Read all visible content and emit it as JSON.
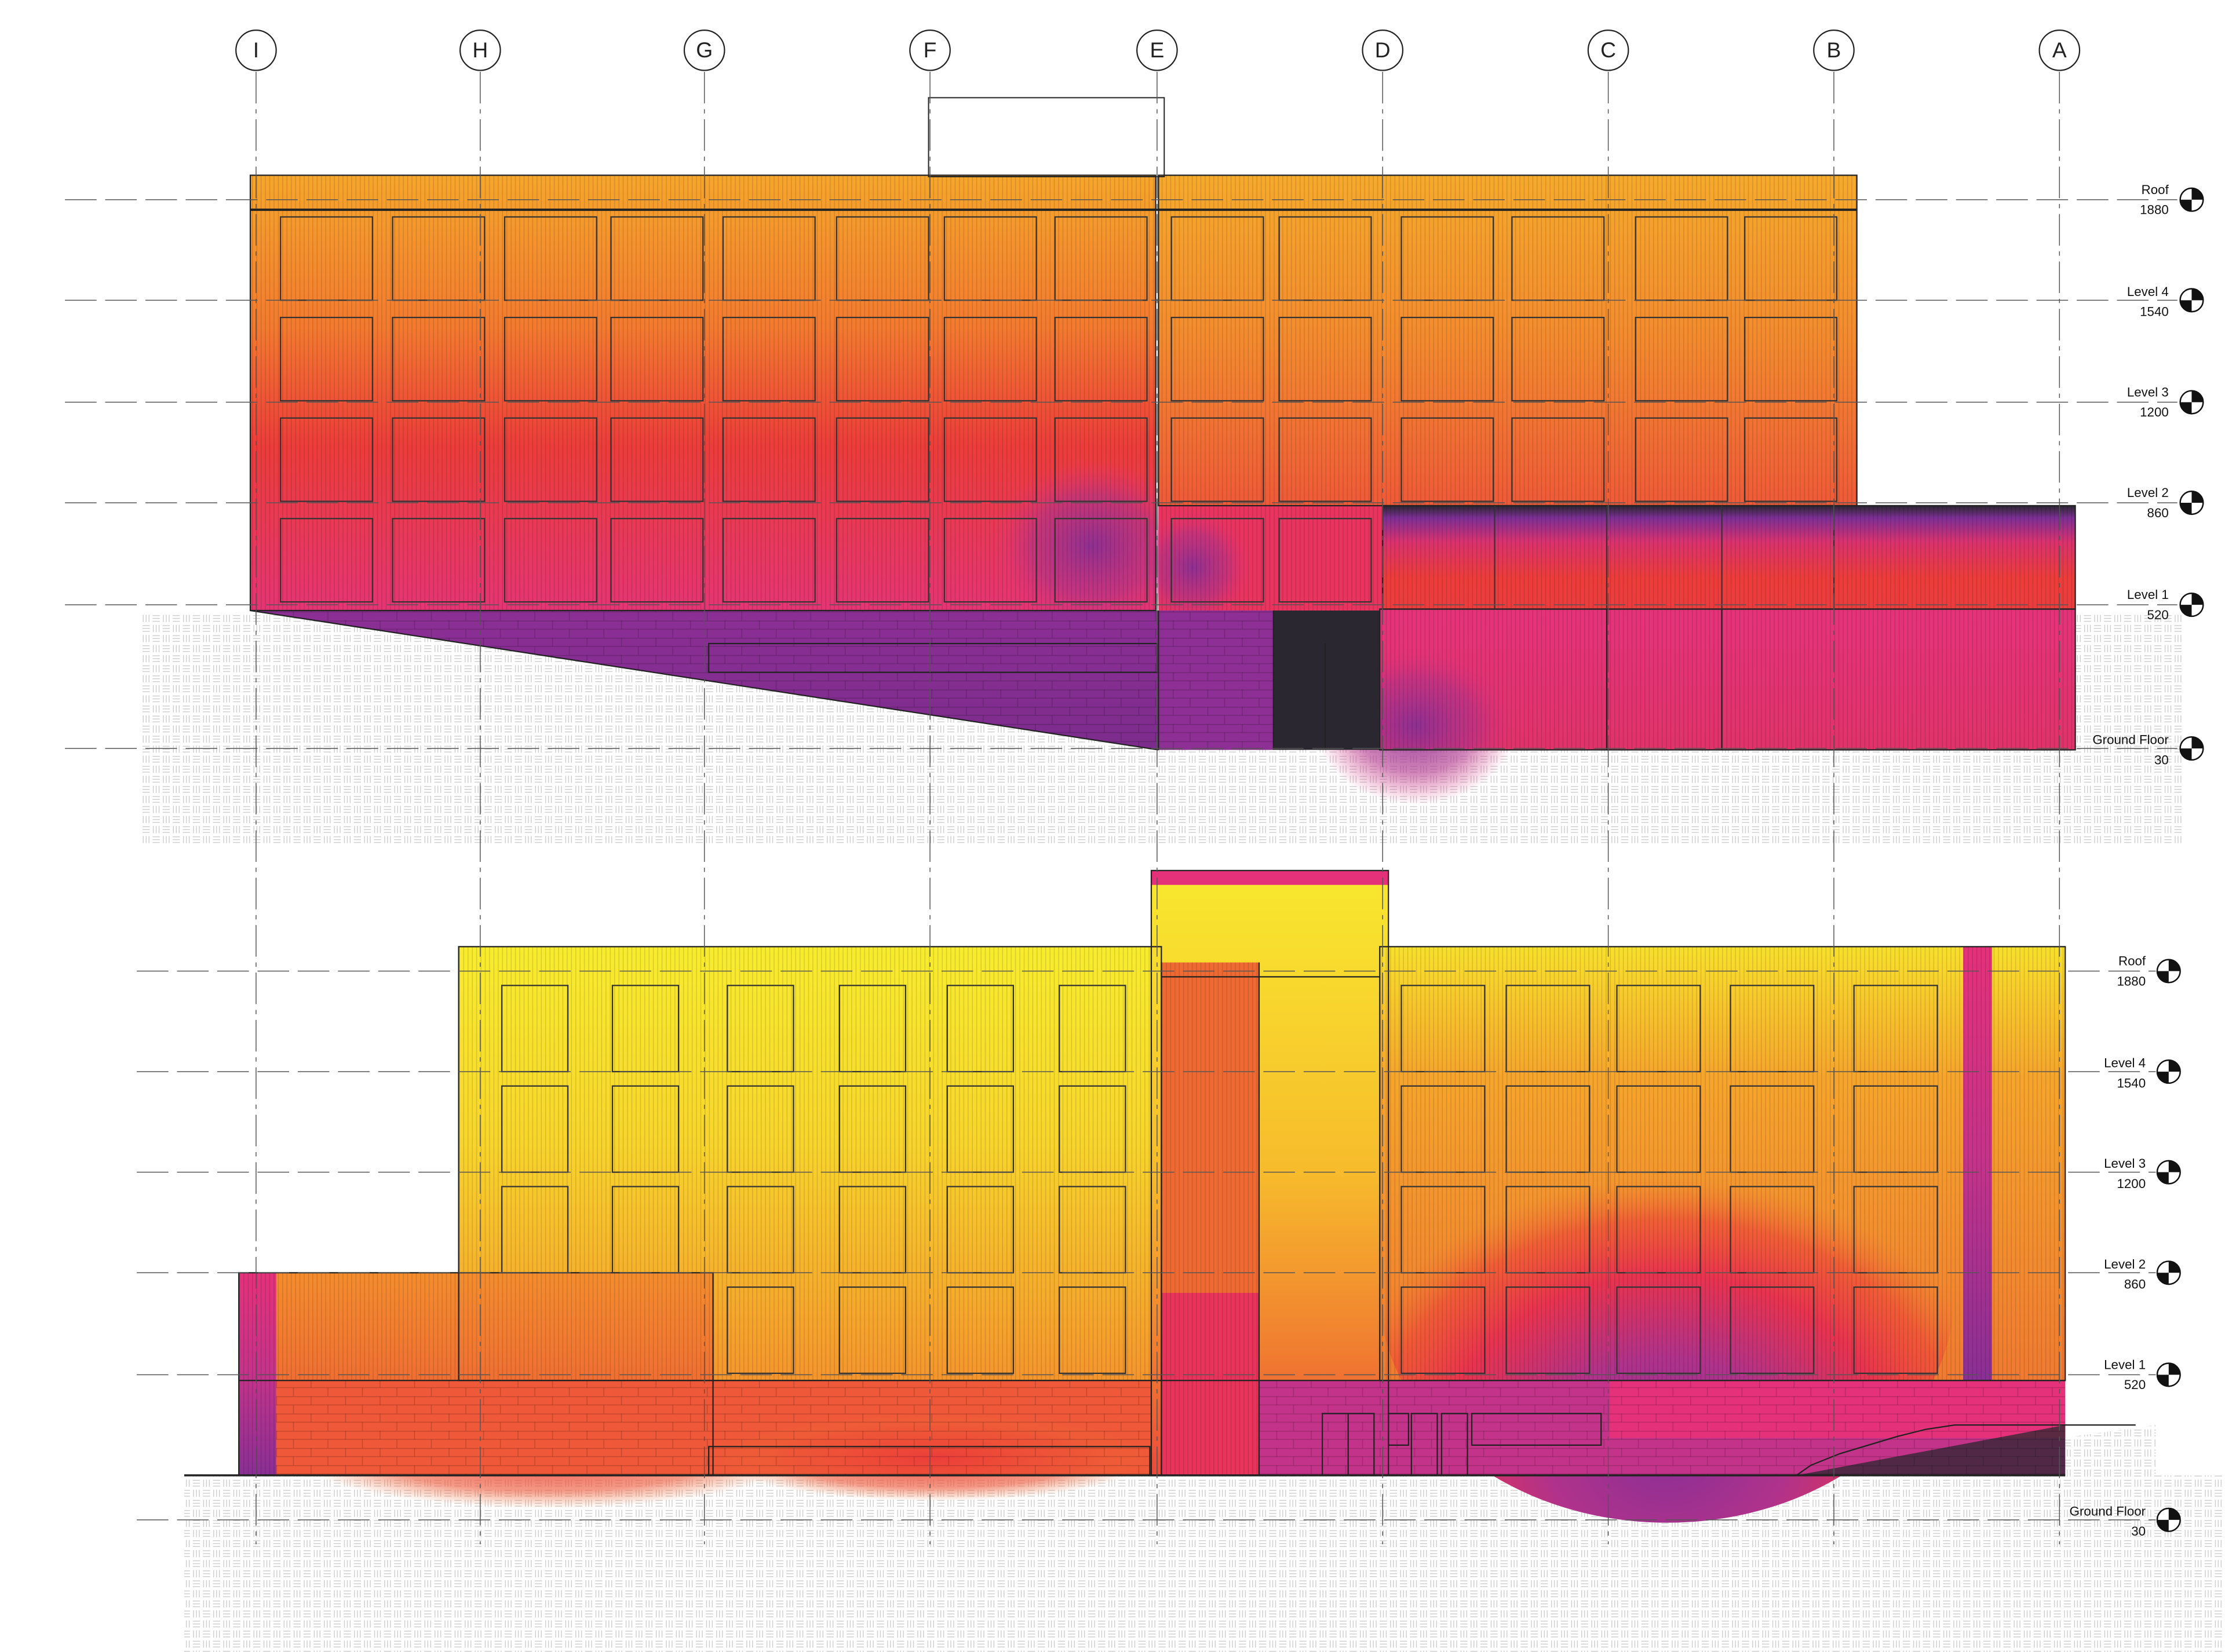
{
  "grid_lines": [
    "I",
    "H",
    "G",
    "F",
    "E",
    "D",
    "C",
    "B",
    "A"
  ],
  "elevations": [
    {
      "levels": [
        {
          "name": "Roof",
          "elevation": "1880"
        },
        {
          "name": "Level 4",
          "elevation": "1540"
        },
        {
          "name": "Level 3",
          "elevation": "1200"
        },
        {
          "name": "Level 2",
          "elevation": "860"
        },
        {
          "name": "Level 1",
          "elevation": "520"
        },
        {
          "name": "Ground Floor",
          "elevation": "30"
        }
      ]
    },
    {
      "levels": [
        {
          "name": "Roof",
          "elevation": "1880"
        },
        {
          "name": "Level 4",
          "elevation": "1540"
        },
        {
          "name": "Level 3",
          "elevation": "1200"
        },
        {
          "name": "Level 2",
          "elevation": "860"
        },
        {
          "name": "Level 1",
          "elevation": "520"
        },
        {
          "name": "Ground Floor",
          "elevation": "30"
        }
      ]
    }
  ],
  "colors": {
    "heat_yellow": "#f8ea2c",
    "heat_orange": "#f6a12c",
    "heat_red": "#ec3d3a",
    "heat_magenta": "#e5317a",
    "heat_purple": "#8a2f95",
    "heat_dark": "#2b2730",
    "ground_hatch": "#cfcfcf",
    "line": "#222222"
  },
  "icons": [
    "level-marker-icon"
  ]
}
